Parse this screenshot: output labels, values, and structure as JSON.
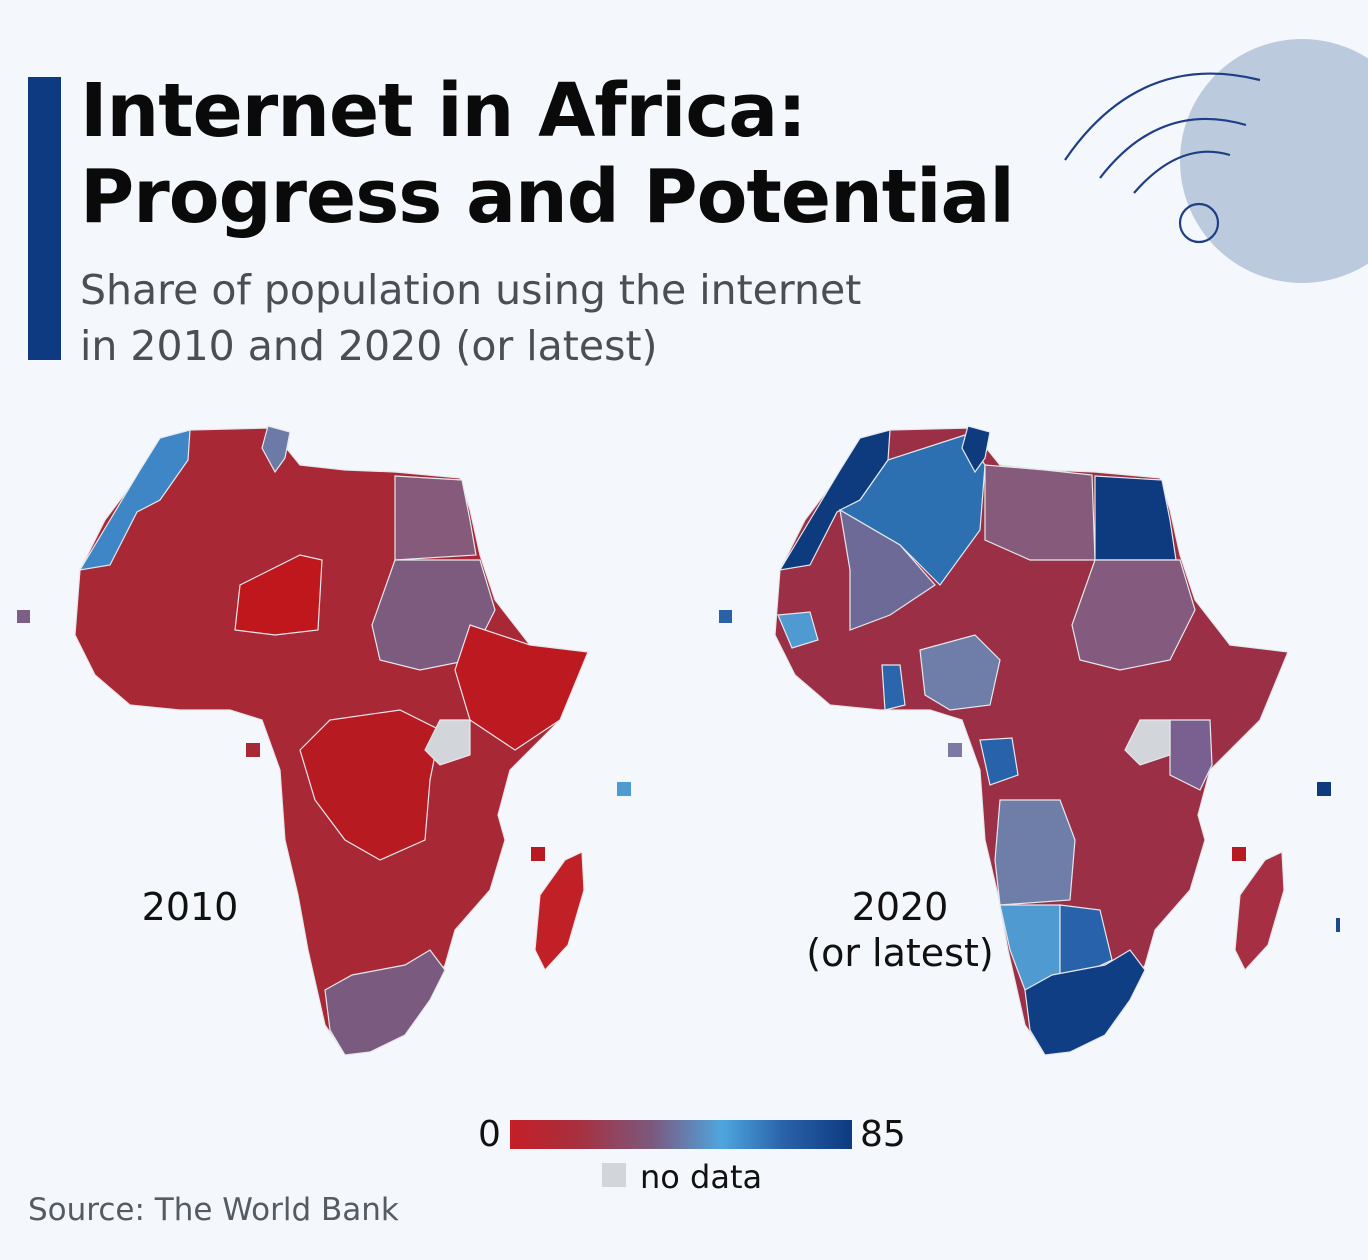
{
  "header": {
    "title_line1": "Internet in Africa:",
    "title_line2": "Progress and Potential",
    "subtitle_line1": "Share of population using the internet",
    "subtitle_line2": "in 2010 and 2020 (or latest)"
  },
  "colors": {
    "accent": "#0d3a80",
    "scale_low": "#c41e27",
    "scale_mid": "#4ea6de",
    "scale_high": "#0d3a80",
    "no_data": "#d2d5d9",
    "background": "#f4f7fb"
  },
  "maps": [
    {
      "label": "2010",
      "label_line2": ""
    },
    {
      "label": "2020",
      "label_line2": "(or latest)"
    }
  ],
  "legend": {
    "min": "0",
    "max": "85",
    "no_data_label": "no data"
  },
  "icons": [
    "wifi-icon"
  ],
  "source": "Source: The World Bank"
}
